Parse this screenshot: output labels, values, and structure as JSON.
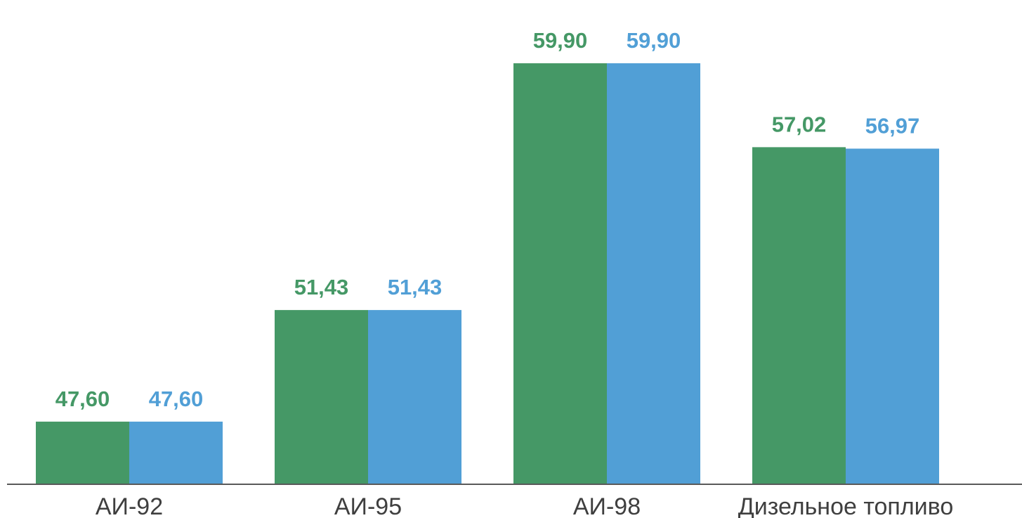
{
  "chart_data": {
    "type": "bar",
    "categories": [
      "АИ-92",
      "АИ-95",
      "АИ-98",
      "Дизельное топливо"
    ],
    "series": [
      {
        "color": "#459866",
        "values": [
          47.6,
          51.43,
          59.9,
          57.02
        ]
      },
      {
        "color": "#519fd6",
        "values": [
          47.6,
          51.43,
          59.9,
          56.97
        ]
      }
    ],
    "value_labels": [
      [
        "47,60",
        "51,43",
        "59,90",
        "57,02"
      ],
      [
        "47,60",
        "51,43",
        "59,90",
        "56,97"
      ]
    ],
    "ylim": [
      45.45,
      60.6
    ],
    "grid": false,
    "legend": "none",
    "axis_color": "#595959",
    "label_color": "#3f3f3f"
  }
}
